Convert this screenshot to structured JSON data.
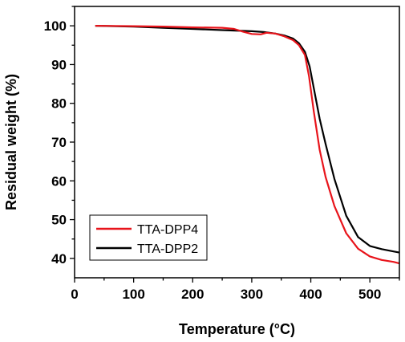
{
  "chart_data": {
    "type": "line",
    "title": "",
    "xlabel": "Temperature (°C)",
    "ylabel": "Residual weight (%)",
    "xlim": [
      0,
      550
    ],
    "ylim": [
      35,
      105
    ],
    "xticks": [
      0,
      100,
      200,
      300,
      400,
      500
    ],
    "yticks": [
      40,
      50,
      60,
      70,
      80,
      90,
      100
    ],
    "grid": false,
    "legend_position": "bottom-left",
    "series": [
      {
        "name": "TTA-DPP4",
        "color": "#e8141b",
        "x": [
          35,
          100,
          150,
          200,
          250,
          270,
          285,
          300,
          315,
          325,
          340,
          355,
          370,
          380,
          390,
          397,
          405,
          415,
          425,
          440,
          460,
          480,
          500,
          520,
          540,
          550
        ],
        "y": [
          100,
          99.9,
          99.8,
          99.6,
          99.5,
          99.2,
          98.5,
          97.9,
          97.8,
          98.2,
          98.0,
          97.3,
          96.3,
          95.0,
          92.5,
          87.0,
          78.0,
          68.0,
          61.0,
          53.5,
          46.5,
          42.5,
          40.5,
          39.6,
          39.1,
          38.7
        ]
      },
      {
        "name": "TTA-DPP2",
        "color": "#000000",
        "x": [
          35,
          100,
          150,
          200,
          250,
          300,
          320,
          340,
          355,
          370,
          380,
          390,
          398,
          405,
          415,
          425,
          440,
          460,
          480,
          500,
          520,
          540,
          550
        ],
        "y": [
          100,
          99.8,
          99.5,
          99.2,
          98.9,
          98.6,
          98.4,
          98.0,
          97.5,
          96.7,
          95.5,
          93.3,
          89.5,
          84.0,
          76.0,
          69.5,
          60.5,
          51.0,
          45.5,
          43.2,
          42.4,
          41.8,
          41.5
        ]
      }
    ]
  }
}
